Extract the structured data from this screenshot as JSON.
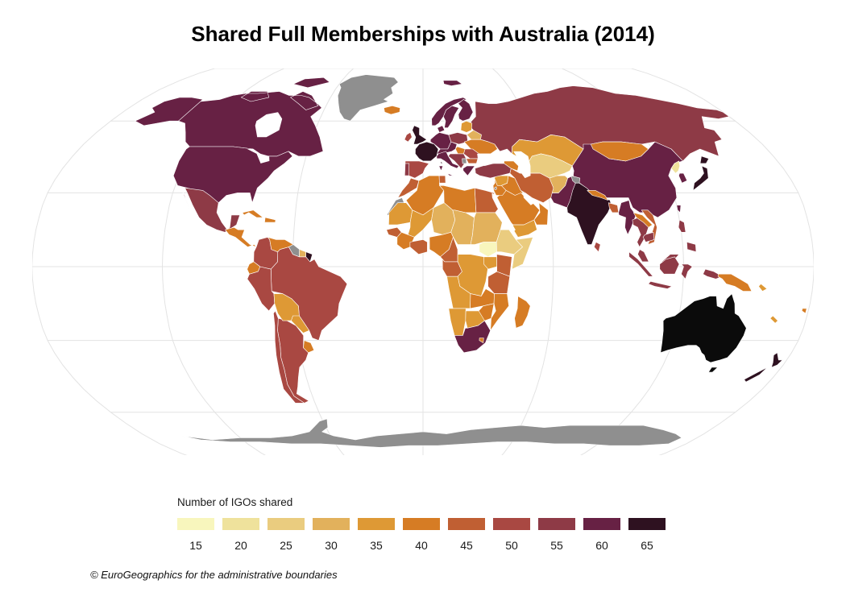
{
  "title": "Shared Full Memberships with Australia (2014)",
  "legend": {
    "label": "Number of IGOs shared",
    "bins": [
      "15",
      "20",
      "25",
      "30",
      "35",
      "40",
      "45",
      "50",
      "55",
      "60",
      "65"
    ],
    "colors": [
      "#f8f6bd",
      "#efe29c",
      "#eacc7f",
      "#e2b15c",
      "#de9935",
      "#d67c24",
      "#c05f33",
      "#a94842",
      "#8e3a46",
      "#672144",
      "#2e1120"
    ]
  },
  "map": {
    "ocean_color": "#ffffff",
    "graticule_color": "#e3e3e3",
    "border_color": "#ffffff",
    "no_data_color": "#8f8f8f",
    "reference_color": "#0b0b0b"
  },
  "footer": {
    "attribution": "© EuroGeographics for the administrative boundaries"
  },
  "chart_data": {
    "type": "choropleth",
    "title": "Shared Full Memberships with Australia (2014)",
    "legend_title": "Number of IGOs shared",
    "unit": "IGOs",
    "bins": [
      15,
      20,
      25,
      30,
      35,
      40,
      45,
      50,
      55,
      60,
      65
    ],
    "bin_size": 5,
    "reference_country": "Australia",
    "projection": "Robinson",
    "regions": {
      "canada": 60,
      "usa": 60,
      "greenland": "no-data",
      "iceland": 40,
      "mexico": 55,
      "central_america": 40,
      "cuba": 40,
      "hispaniola": 40,
      "colombia": 50,
      "venezuela": 40,
      "guyana": "no-data",
      "suriname": 30,
      "french_guiana": 65,
      "ecuador": 40,
      "peru": 50,
      "brazil": 50,
      "bolivia": 35,
      "paraguay": 35,
      "uruguay": 40,
      "argentina": 50,
      "chile": 50,
      "norway": 60,
      "sweden": 60,
      "finland": 60,
      "denmark": 60,
      "uk": 65,
      "ireland": 50,
      "france": 65,
      "spain": 50,
      "portugal": 55,
      "germany": 60,
      "czech_austria": 60,
      "poland": 55,
      "baltics": 35,
      "belarus": 30,
      "ukraine": 40,
      "hungary": 40,
      "romania": 50,
      "balkans": 55,
      "kosovo": "no-data",
      "bulgaria": 45,
      "greece": 60,
      "italy": 60,
      "morocco": 45,
      "western_sahara": "no-data",
      "algeria": 40,
      "tunisia": 45,
      "libya": 40,
      "egypt": 45,
      "mauritania": 35,
      "mali": 35,
      "niger": 30,
      "chad": 30,
      "sudan": 30,
      "south_sudan": 15,
      "ethiopia": 25,
      "somalia": 25,
      "senegal": 45,
      "guinea_coast": 40,
      "ivory_ghana": 45,
      "nigeria": 40,
      "cameroon": 45,
      "gabon_congo": 45,
      "drc": 35,
      "uganda": 35,
      "kenya": 45,
      "tanzania": 45,
      "angola": 35,
      "zambia": 40,
      "mozambique": 40,
      "zimbabwe": 40,
      "namibia": 35,
      "botswana": 35,
      "south_africa": 60,
      "lesotho": 40,
      "madagascar": 40,
      "turkey": 55,
      "caucasus": 40,
      "syria": 35,
      "iraq": 40,
      "levant": 40,
      "palestine": "no-data",
      "saudi_arabia": 40,
      "yemen": 35,
      "oman": 40,
      "iran": 45,
      "afghanistan": 30,
      "pakistan": 60,
      "kashmir": "no-data",
      "central_asia": 25,
      "kazakhstan": 35,
      "russia": 55,
      "mongolia": 40,
      "china": 60,
      "taiwan": 60,
      "north_korea": 20,
      "south_korea": 60,
      "japan": 65,
      "india": 65,
      "nepal": 40,
      "bangladesh": 45,
      "sri_lanka": 50,
      "myanmar": 60,
      "thailand": 55,
      "laos": 40,
      "vietnam": 45,
      "cambodia": 55,
      "malaysia": 55,
      "indonesia": 55,
      "philippines": 55,
      "papua_new_guinea": 40,
      "fiji": 40,
      "new_caledonia": 35,
      "solomon_islands": 35,
      "australia": "reference",
      "new_zealand": 65,
      "antarctica": "no-data"
    }
  }
}
